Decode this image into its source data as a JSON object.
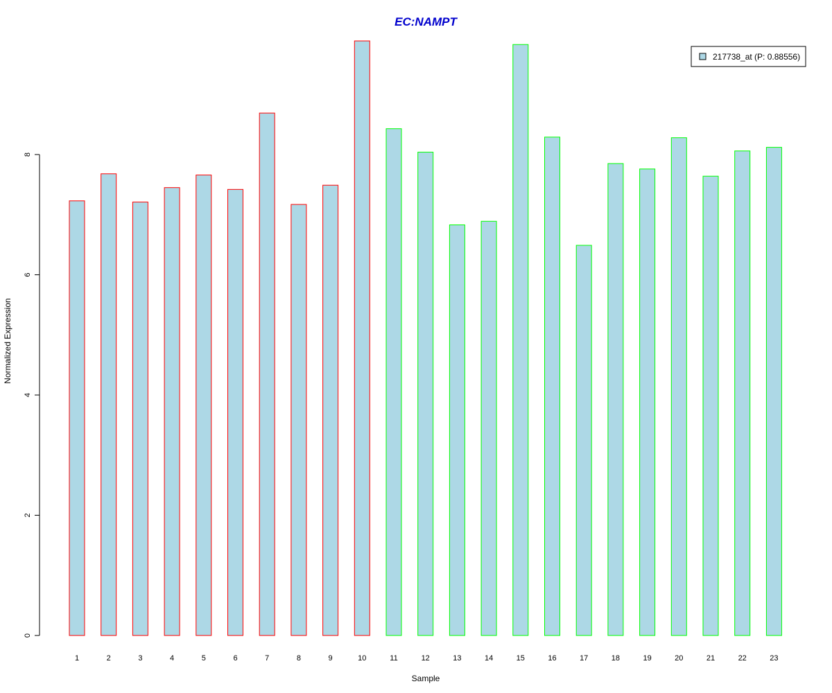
{
  "chart_data": {
    "type": "bar",
    "title": "EC:NAMPT",
    "xlabel": "Sample",
    "ylabel": "Normalized Expression",
    "categories": [
      "1",
      "2",
      "3",
      "4",
      "5",
      "6",
      "7",
      "8",
      "9",
      "10",
      "11",
      "12",
      "13",
      "14",
      "15",
      "16",
      "17",
      "18",
      "19",
      "20",
      "21",
      "22",
      "23"
    ],
    "values": [
      7.23,
      7.68,
      7.21,
      7.45,
      7.66,
      7.42,
      8.69,
      7.17,
      7.49,
      9.89,
      8.43,
      8.04,
      6.83,
      6.89,
      9.83,
      8.29,
      6.49,
      7.85,
      7.76,
      8.28,
      7.64,
      8.06,
      8.12
    ],
    "group_of_bar": [
      "a",
      "a",
      "a",
      "a",
      "a",
      "a",
      "a",
      "a",
      "a",
      "a",
      "b",
      "b",
      "b",
      "b",
      "b",
      "b",
      "b",
      "b",
      "b",
      "b",
      "b",
      "b",
      "b"
    ],
    "yticks": [
      0,
      2,
      4,
      6,
      8
    ],
    "ylim": [
      0,
      9.89
    ],
    "grid": false,
    "legend": {
      "position": "top-right",
      "entries": [
        {
          "label": "217738_at (P: 0.88556)",
          "color": "#add8e6"
        }
      ]
    },
    "colors": {
      "fill": "#add8e6",
      "border_group_a": "#ff0000",
      "border_group_b": "#00ff00",
      "title": "#0000cd",
      "axis": "#000000"
    }
  }
}
